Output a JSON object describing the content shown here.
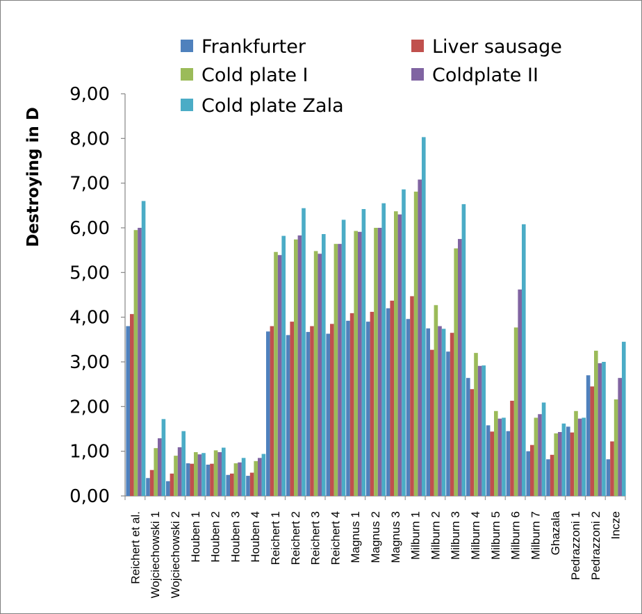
{
  "chart_data": {
    "type": "bar",
    "title": "",
    "xlabel": "",
    "ylabel": "Destroying in D",
    "ylim": [
      0,
      9
    ],
    "yticks": [
      "0,00",
      "1,00",
      "2,00",
      "3,00",
      "4,00",
      "5,00",
      "6,00",
      "7,00",
      "8,00",
      "9,00"
    ],
    "grid": false,
    "legend_position": "top",
    "categories": [
      "Reichert et al.",
      "Wojciechowski 1",
      "Wojciechowski 2",
      "Houben 1",
      "Houben 2",
      "Houben 3",
      "Houben 4",
      "Reichert 1",
      "Reichert 2",
      "Reichert 3",
      "Reichert 4",
      "Magnus 1",
      "Magnus 2",
      "Magnus 3",
      "Milburn 1",
      "Milburn 2",
      "Milburn 3",
      "Milburn 4",
      "Milburn 5",
      "Milburn 6",
      "Milburn 7",
      "Ghazala",
      "Pedrazzoni 1",
      "Pedrazzoni 2",
      "Incze"
    ],
    "series": [
      {
        "name": "Frankfurter",
        "color": "#4f81bd",
        "values": [
          3.8,
          0.4,
          0.33,
          0.73,
          0.7,
          0.47,
          0.45,
          3.68,
          3.6,
          3.67,
          3.63,
          3.92,
          3.9,
          4.2,
          3.96,
          3.75,
          3.23,
          2.64,
          1.58,
          1.45,
          1.0,
          0.82,
          1.55,
          2.7,
          0.82
        ]
      },
      {
        "name": "Liver sausage",
        "color": "#c0504d",
        "values": [
          4.07,
          0.58,
          0.5,
          0.72,
          0.72,
          0.5,
          0.52,
          3.8,
          3.9,
          3.8,
          3.85,
          4.09,
          4.12,
          4.37,
          4.47,
          3.27,
          3.65,
          2.39,
          1.44,
          2.13,
          1.14,
          0.92,
          1.42,
          2.45,
          1.22
        ]
      },
      {
        "name": "Cold plate I",
        "color": "#9bbb59",
        "values": [
          5.95,
          1.07,
          0.9,
          0.98,
          1.02,
          0.73,
          0.78,
          5.46,
          5.74,
          5.48,
          5.64,
          5.93,
          6.0,
          6.37,
          6.81,
          4.27,
          5.54,
          3.2,
          1.9,
          3.77,
          1.75,
          1.4,
          1.9,
          3.25,
          2.16
        ]
      },
      {
        "name": "Coldplate II",
        "color": "#8064a2",
        "values": [
          6.0,
          1.29,
          1.09,
          0.93,
          0.98,
          0.75,
          0.85,
          5.39,
          5.83,
          5.42,
          5.64,
          5.91,
          6.0,
          6.3,
          7.08,
          3.8,
          5.75,
          2.91,
          1.73,
          4.62,
          1.83,
          1.43,
          1.73,
          2.97,
          2.64
        ]
      },
      {
        "name": "Cold plate Zala",
        "color": "#4bacc6",
        "values": [
          6.6,
          1.72,
          1.45,
          0.96,
          1.08,
          0.85,
          0.94,
          5.82,
          6.44,
          5.86,
          6.18,
          6.42,
          6.55,
          6.86,
          8.03,
          3.74,
          6.53,
          2.92,
          1.75,
          6.08,
          2.09,
          1.62,
          1.75,
          3.0,
          3.45
        ]
      }
    ]
  }
}
